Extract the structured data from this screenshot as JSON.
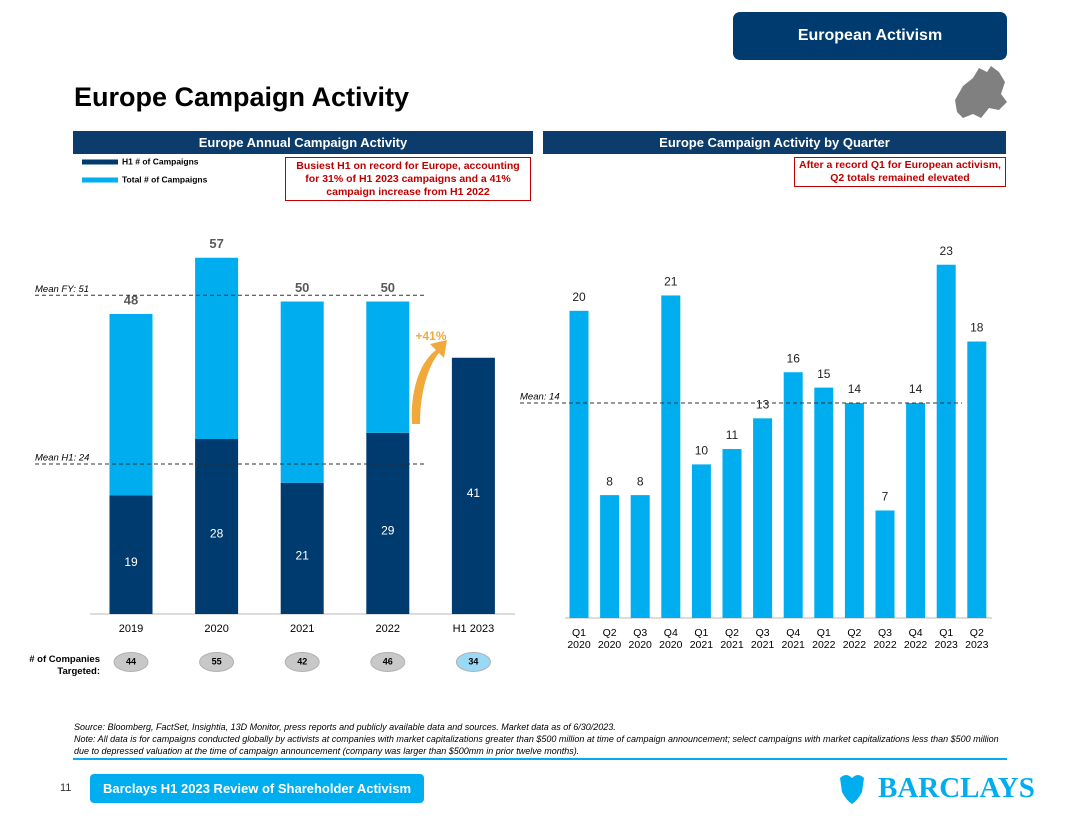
{
  "header": {
    "tag": "European Activism",
    "title": "Europe Campaign Activity"
  },
  "chart_data": [
    {
      "type": "stacked-bar",
      "title": "Europe Annual Campaign Activity",
      "annotation": "Busiest H1 on record for Europe, accounting for 31% of H1 2023 campaigns and a 41% campaign increase from H1 2022",
      "categories": [
        "2019",
        "2020",
        "2021",
        "2022",
        "H1 2023"
      ],
      "series": [
        {
          "name": "H1 # of Campaigns",
          "color": "#003b6f",
          "values": [
            19,
            28,
            21,
            29,
            41
          ]
        },
        {
          "name": "Total # of Campaigns",
          "color": "#00aeef",
          "values": [
            29,
            29,
            29,
            21,
            null
          ]
        }
      ],
      "totals": [
        48,
        57,
        50,
        50,
        null
      ],
      "ylim": [
        0,
        60
      ],
      "mean_lines": [
        {
          "label": "Mean FY: 51",
          "value": 51
        },
        {
          "label": "Mean H1: 24",
          "value": 24
        }
      ],
      "growth_label": "+41%",
      "companies_label": "# of Companies Targeted:",
      "companies": [
        44,
        55,
        42,
        46,
        34
      ]
    },
    {
      "type": "bar",
      "title": "Europe Campaign Activity by Quarter",
      "annotation": "After a record Q1 for European activism, Q2 totals remained elevated",
      "categories": [
        [
          "Q1",
          "2020"
        ],
        [
          "Q2",
          "2020"
        ],
        [
          "Q3",
          "2020"
        ],
        [
          "Q4",
          "2020"
        ],
        [
          "Q1",
          "2021"
        ],
        [
          "Q2",
          "2021"
        ],
        [
          "Q3",
          "2021"
        ],
        [
          "Q4",
          "2021"
        ],
        [
          "Q1",
          "2022"
        ],
        [
          "Q2",
          "2022"
        ],
        [
          "Q3",
          "2022"
        ],
        [
          "Q4",
          "2022"
        ],
        [
          "Q1",
          "2023"
        ],
        [
          "Q2",
          "2023"
        ]
      ],
      "values": [
        20,
        8,
        8,
        21,
        10,
        11,
        13,
        16,
        15,
        14,
        7,
        14,
        23,
        18
      ],
      "color": "#00aeef",
      "ylim": [
        0,
        25
      ],
      "mean_lines": [
        {
          "label": "Mean: 14",
          "value": 14
        }
      ]
    }
  ],
  "footer": {
    "source": "Source: Bloomberg, FactSet, Insightia, 13D Monitor, press reports and publicly available data and sources. Market data as of 6/30/2023.",
    "note": "Note: All data is for campaigns conducted globally by activists at companies with market capitalizations greater than $500 million at time of campaign announcement; select campaigns with market capitalizations less than $500 million due to depressed valuation at the time of campaign announcement (company was larger than $500mm in prior twelve months).",
    "page": "11",
    "report": "Barclays H1 2023 Review of Shareholder Activism",
    "brand": "BARCLAYS"
  }
}
